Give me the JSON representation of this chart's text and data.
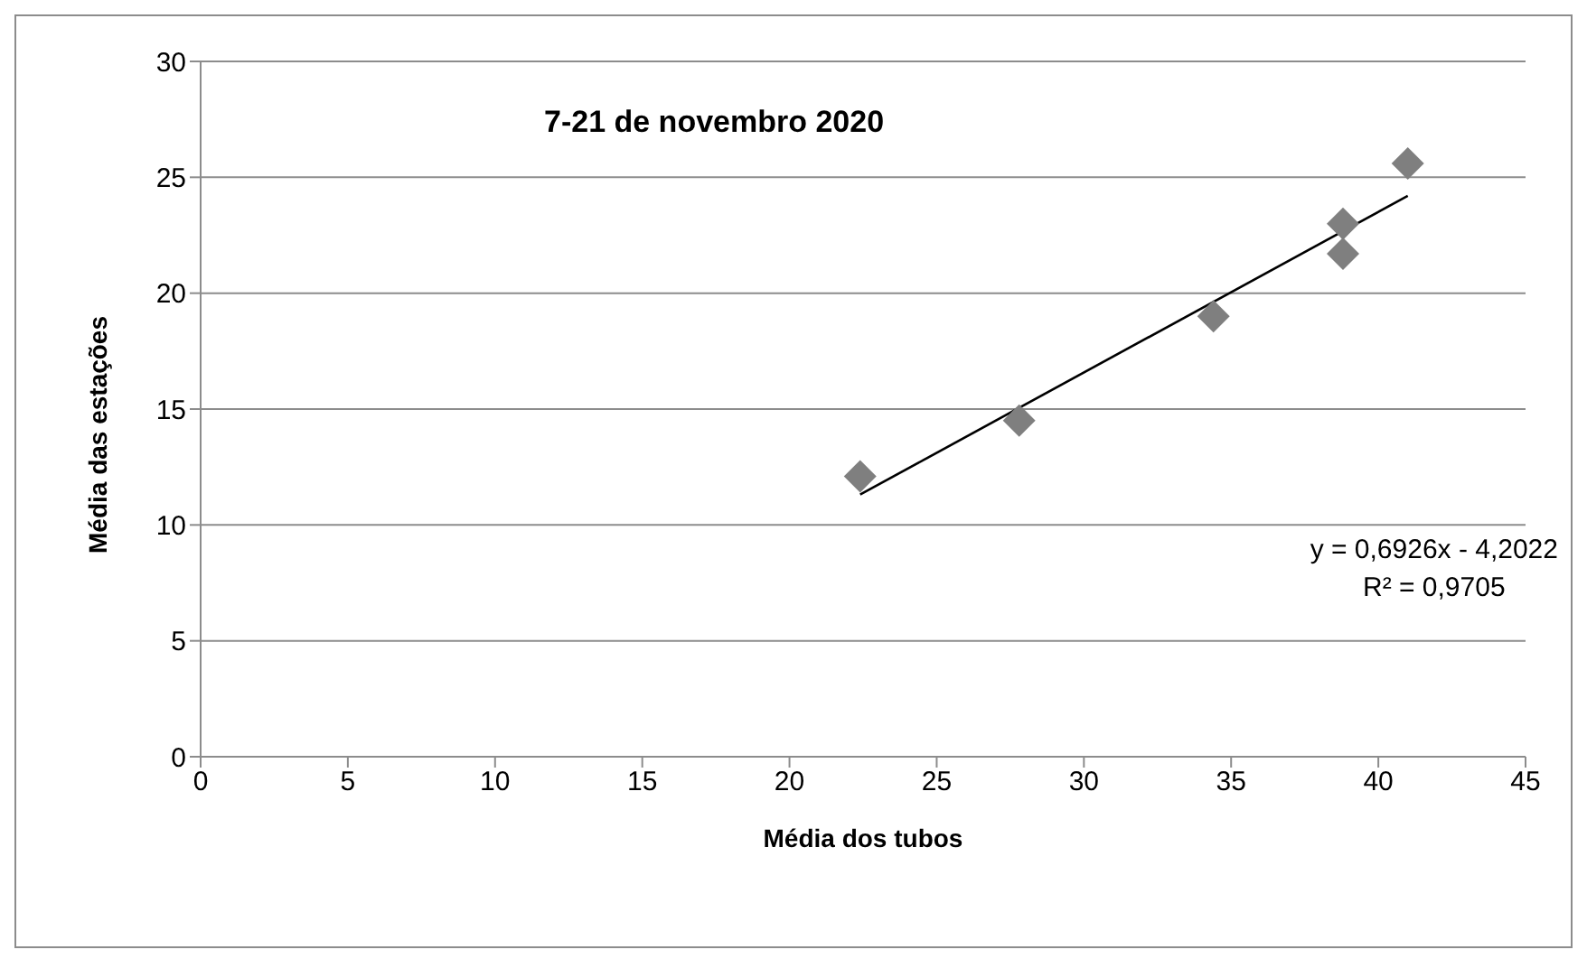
{
  "chart_data": {
    "type": "scatter",
    "title": "7-21 de novembro 2020",
    "xlabel": "Média dos tubos",
    "ylabel": "Média das estações",
    "x": [
      22.4,
      27.8,
      34.4,
      38.8,
      38.8,
      41.0
    ],
    "series": [
      {
        "color": "#7f7f7f",
        "marker": "diamond",
        "values": [
          12.1,
          14.5,
          19.0,
          23.0,
          21.7,
          25.6
        ]
      },
      {
        "type": "line",
        "color": "#000000",
        "marker": "none",
        "line_style": "solid",
        "x": [
          22.4,
          41.0
        ],
        "values": [
          11.31,
          24.2
        ]
      }
    ],
    "annotations": [
      "y = 0,6926x - 4,2022",
      "R² = 0,9705"
    ],
    "xlim": [
      0,
      45
    ],
    "xticks": [
      0,
      5,
      10,
      15,
      20,
      25,
      30,
      35,
      40,
      45
    ],
    "ylim": [
      0,
      30
    ],
    "yticks": [
      0,
      5,
      10,
      15,
      20,
      25,
      30
    ],
    "grid": "y"
  }
}
